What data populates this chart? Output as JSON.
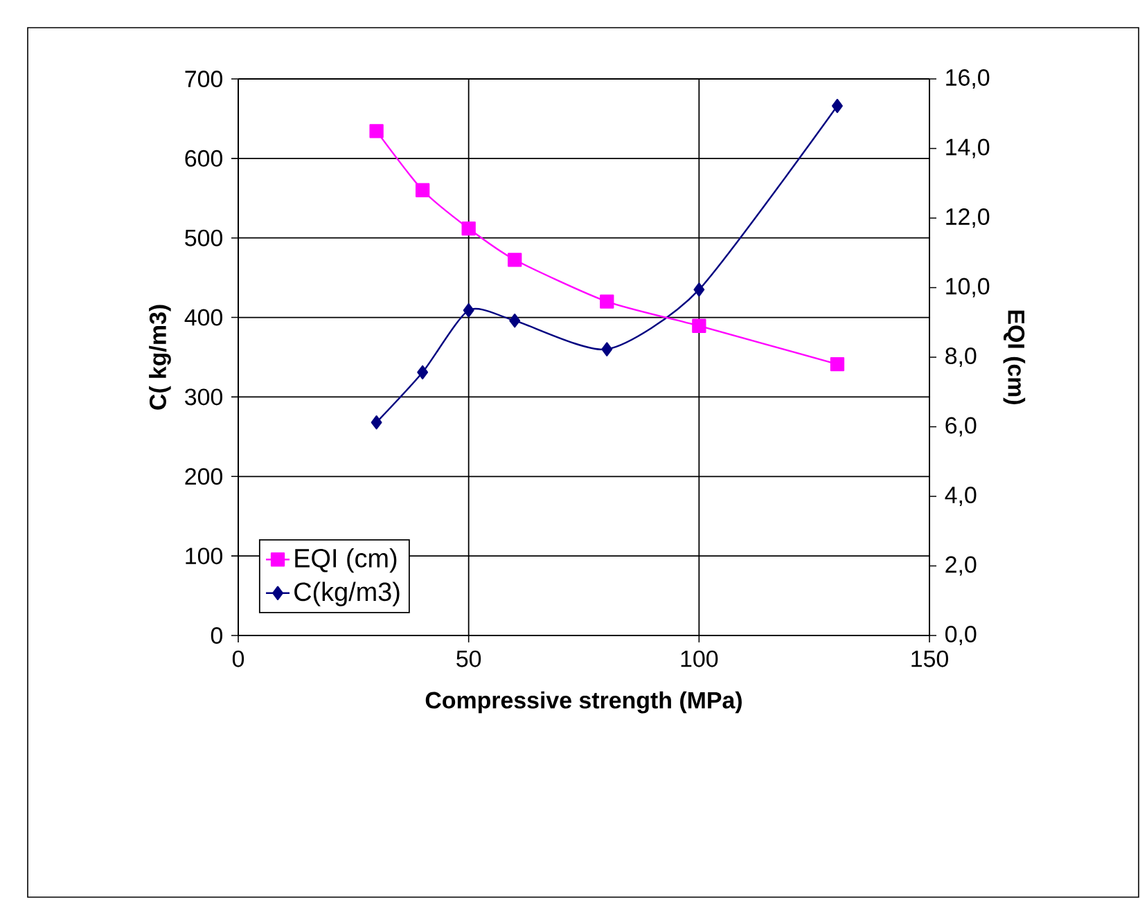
{
  "chart_data": {
    "type": "line",
    "xlabel": "Compressive strength (MPa)",
    "ylabel": "C( kg/m3)",
    "y2label": "EQI (cm)",
    "x": [
      30,
      40,
      50,
      60,
      80,
      100,
      130
    ],
    "series": [
      {
        "name": "EQI (cm)",
        "color": "#ff00ff",
        "axis": "y2",
        "marker": "square",
        "values": [
          14.5,
          12.8,
          11.7,
          10.8,
          9.6,
          8.9,
          7.8
        ]
      },
      {
        "name": "C(kg/m3)",
        "color": "#000080",
        "marker": "diamond",
        "values": [
          268,
          331,
          409,
          396,
          360,
          435,
          666
        ]
      }
    ],
    "xlim": [
      0,
      150
    ],
    "xticks": [
      0,
      50,
      100,
      150
    ],
    "ylim": [
      0,
      700
    ],
    "yticks": [
      0,
      100,
      200,
      300,
      400,
      500,
      600,
      700
    ],
    "y2lim": [
      0,
      16
    ],
    "y2ticks": [
      {
        "value": 0,
        "label": "0,0"
      },
      {
        "value": 2,
        "label": "2,0"
      },
      {
        "value": 4,
        "label": "4,0"
      },
      {
        "value": 6,
        "label": "6,0"
      },
      {
        "value": 8,
        "label": "8,0"
      },
      {
        "value": 10,
        "label": "10,0"
      },
      {
        "value": 12,
        "label": "12,0"
      },
      {
        "value": 14,
        "label": "14,0"
      },
      {
        "value": 16,
        "label": "16,0"
      }
    ],
    "grid": true,
    "legend": "bottom left"
  }
}
